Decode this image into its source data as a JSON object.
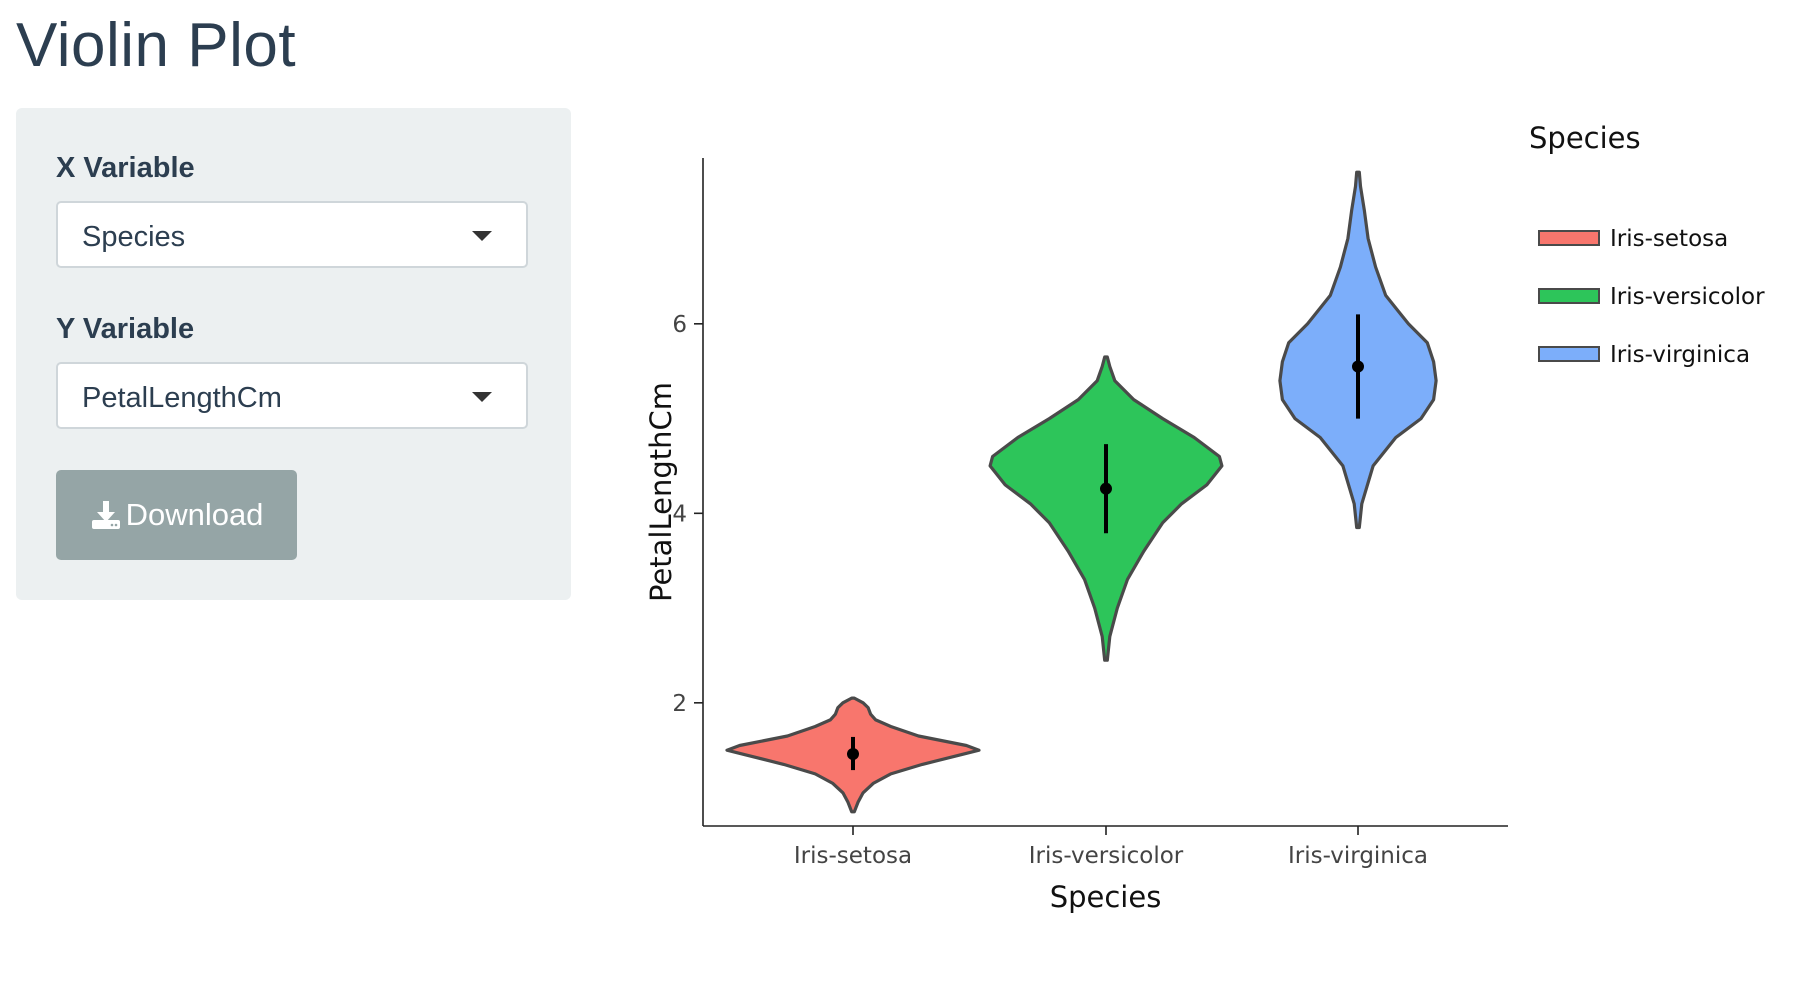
{
  "page": {
    "title": "Violin Plot"
  },
  "controls": {
    "x_label": "X Variable",
    "x_value": "Species",
    "y_label": "Y Variable",
    "y_value": "PetalLengthCm",
    "download_label": "Download"
  },
  "icons": {
    "download": "download-icon",
    "dropdown": "chevron-down-icon"
  },
  "chart_data": {
    "type": "violin",
    "xlabel": "Species",
    "ylabel": "PetalLengthCm",
    "categories": [
      "Iris-setosa",
      "Iris-versicolor",
      "Iris-virginica"
    ],
    "yticks": [
      2,
      4,
      6
    ],
    "ylim": [
      0.7,
      7.75
    ],
    "grid": false,
    "legend": {
      "title": "Species",
      "position": "right"
    },
    "series": [
      {
        "name": "Iris-setosa",
        "color": "#f8766d",
        "mean": 1.46,
        "sd_low": 1.29,
        "sd_high": 1.64,
        "min": 0.85,
        "max": 2.05,
        "density": [
          [
            0.85,
            0.01
          ],
          [
            0.95,
            0.04
          ],
          [
            1.05,
            0.08
          ],
          [
            1.15,
            0.16
          ],
          [
            1.25,
            0.3
          ],
          [
            1.35,
            0.55
          ],
          [
            1.45,
            0.85
          ],
          [
            1.5,
            1.0
          ],
          [
            1.55,
            0.9
          ],
          [
            1.65,
            0.52
          ],
          [
            1.75,
            0.3
          ],
          [
            1.82,
            0.18
          ],
          [
            1.88,
            0.14
          ],
          [
            1.95,
            0.12
          ],
          [
            2.0,
            0.08
          ],
          [
            2.05,
            0.01
          ]
        ]
      },
      {
        "name": "Iris-versicolor",
        "color": "#2dc55a",
        "mean": 4.26,
        "sd_low": 3.79,
        "sd_high": 4.73,
        "min": 2.45,
        "max": 5.65,
        "density": [
          [
            2.45,
            0.01
          ],
          [
            2.7,
            0.03
          ],
          [
            3.0,
            0.09
          ],
          [
            3.3,
            0.17
          ],
          [
            3.6,
            0.3
          ],
          [
            3.9,
            0.45
          ],
          [
            4.1,
            0.6
          ],
          [
            4.3,
            0.8
          ],
          [
            4.5,
            0.92
          ],
          [
            4.6,
            0.9
          ],
          [
            4.8,
            0.7
          ],
          [
            5.0,
            0.45
          ],
          [
            5.2,
            0.22
          ],
          [
            5.4,
            0.07
          ],
          [
            5.55,
            0.03
          ],
          [
            5.65,
            0.01
          ]
        ]
      },
      {
        "name": "Iris-virginica",
        "color": "#7caefa",
        "mean": 5.55,
        "sd_low": 5.0,
        "sd_high": 6.1,
        "min": 3.85,
        "max": 7.6,
        "density": [
          [
            3.85,
            0.01
          ],
          [
            4.1,
            0.03
          ],
          [
            4.5,
            0.12
          ],
          [
            4.8,
            0.3
          ],
          [
            5.0,
            0.5
          ],
          [
            5.2,
            0.6
          ],
          [
            5.4,
            0.62
          ],
          [
            5.6,
            0.6
          ],
          [
            5.8,
            0.55
          ],
          [
            6.0,
            0.4
          ],
          [
            6.3,
            0.22
          ],
          [
            6.6,
            0.14
          ],
          [
            6.9,
            0.08
          ],
          [
            7.2,
            0.05
          ],
          [
            7.45,
            0.02
          ],
          [
            7.6,
            0.01
          ]
        ]
      }
    ]
  }
}
